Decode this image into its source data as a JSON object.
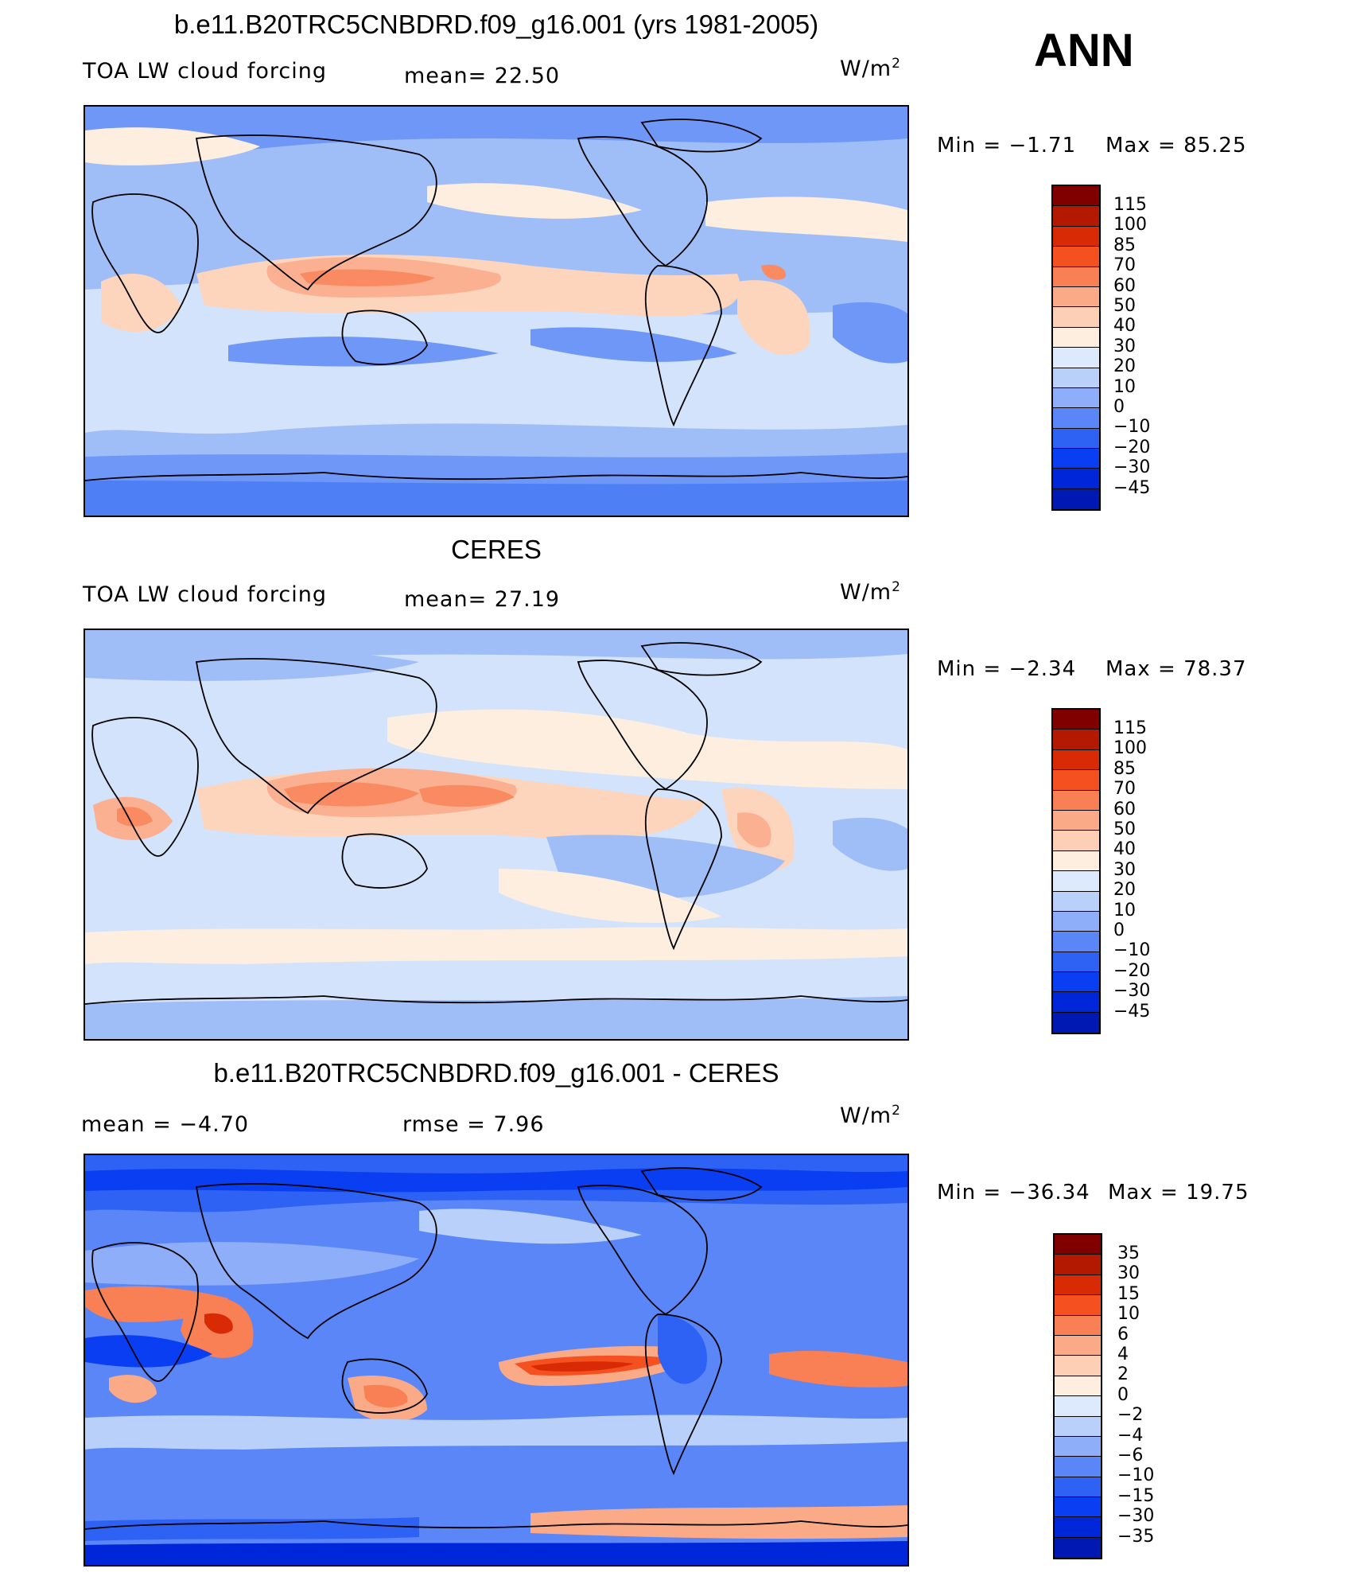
{
  "header": {
    "season_label": "ANN"
  },
  "palette": {
    "default": [
      "#000d80",
      "#0019b3",
      "#0026d9",
      "#0a3ef2",
      "#2e62f5",
      "#5a86f7",
      "#8eaef9",
      "#b9d0fb",
      "#dde9fd",
      "#fdeee0",
      "#fdd0b5",
      "#fbaa88",
      "#f98054",
      "#f55020",
      "#d92a06",
      "#b31800",
      "#800000"
    ],
    "levels_abs": [
      "115",
      "100",
      "85",
      "70",
      "60",
      "50",
      "40",
      "30",
      "20",
      "10",
      "0",
      "−10",
      "−20",
      "−30",
      "−45"
    ],
    "levels_diff": [
      "35",
      "30",
      "15",
      "10",
      "6",
      "4",
      "2",
      "0",
      "−2",
      "−4",
      "−6",
      "−10",
      "−15",
      "−30",
      "−35"
    ]
  },
  "panels": [
    {
      "title": "b.e11.B20TRC5CNBDRD.f09_g16.001 (yrs 1981-2005)",
      "left_label": "TOA LW cloud forcing",
      "middle_label": "mean=   22.50",
      "units_base": "W/m",
      "units_exp": "2",
      "min_text": "Min =  −1.71",
      "max_text": "Max =   85.25"
    },
    {
      "title": "CERES",
      "left_label": "TOA LW cloud forcing",
      "middle_label": "mean=   27.19",
      "units_base": "W/m",
      "units_exp": "2",
      "min_text": "Min =  −2.34",
      "max_text": "Max =   78.37"
    },
    {
      "title": "b.e11.B20TRC5CNBDRD.f09_g16.001 - CERES",
      "left_label": "mean =   −4.70",
      "middle_label": "rmse =    7.96",
      "units_base": "W/m",
      "units_exp": "2",
      "min_text": "Min = −36.34",
      "max_text": "Max =   19.75"
    }
  ]
}
